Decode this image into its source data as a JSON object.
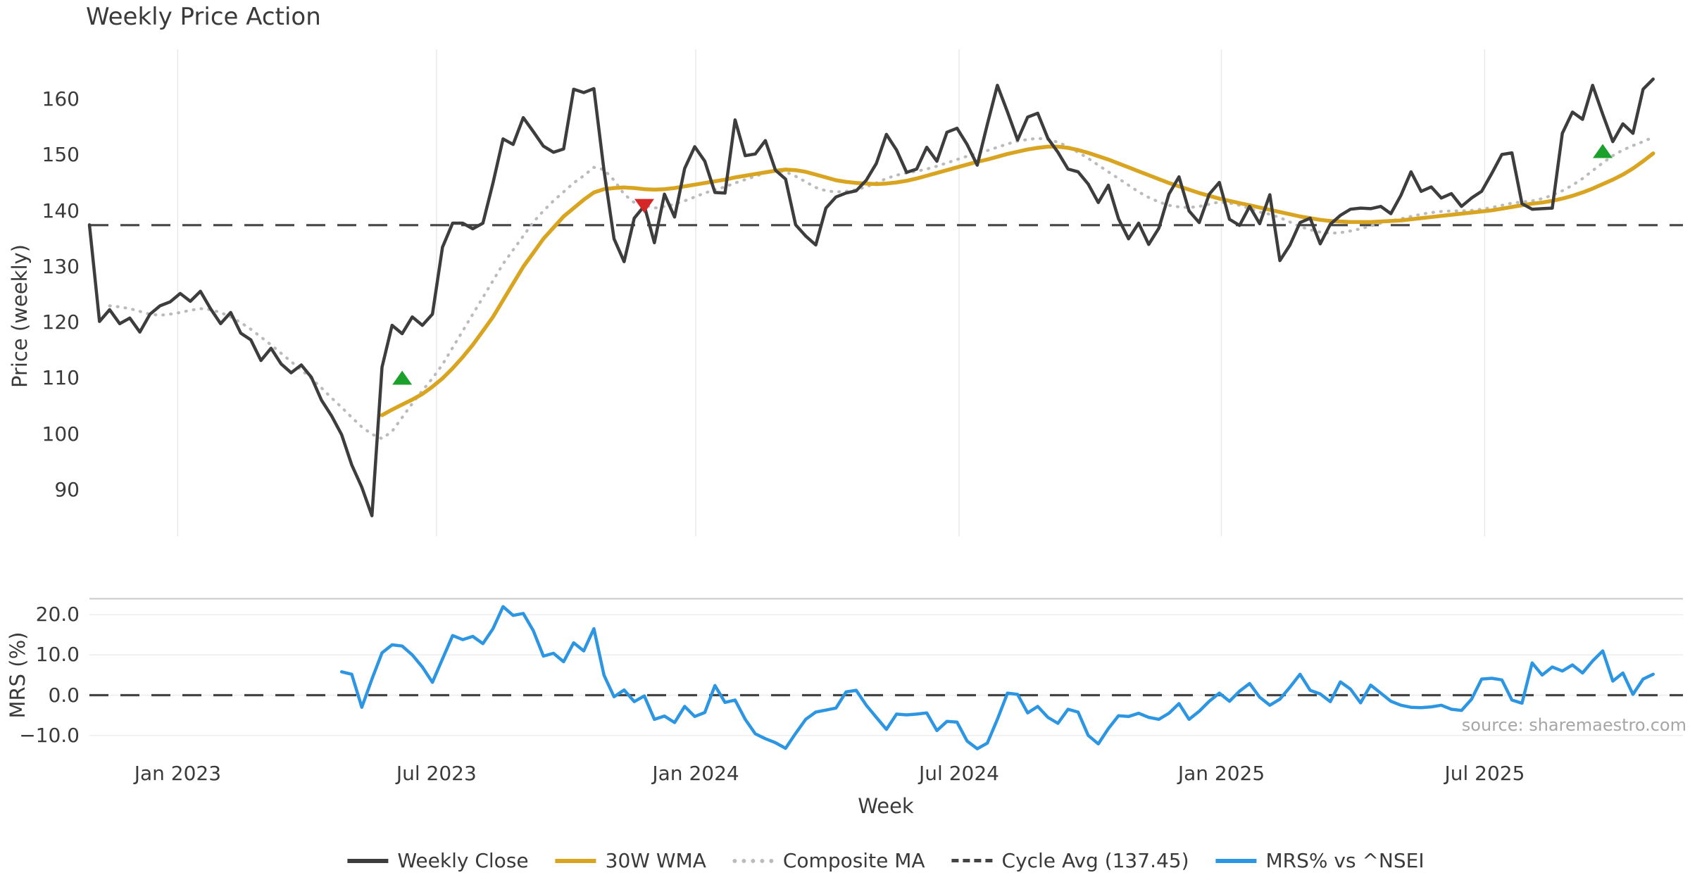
{
  "chart_data": {
    "type": "line",
    "title": "Weekly Price Action",
    "xlabel": "Week",
    "source_text": "source: sharemaestro.com",
    "x_axis": {
      "tick_labels": [
        "Jan 2023",
        "Jul 2023",
        "Jan 2024",
        "Jul 2024",
        "Jan 2025",
        "Jul 2025"
      ],
      "tick_weeks": [
        8.75,
        34.4,
        60.1,
        86.2,
        112.2,
        138.3
      ]
    },
    "colors": {
      "close": "#3d3d3d",
      "wma": "#d9a521",
      "composite": "#bbbbbb",
      "cycle_avg": "#444444",
      "mrs": "#2d96e3",
      "buy_marker": "#1ca02c",
      "sell_marker": "#d62728",
      "gridline": "#e9e9e9",
      "panel_border": "#c9c9c9"
    },
    "panels": [
      {
        "name": "price",
        "ylabel": "Price (weekly)",
        "ylim": [
          82,
          169
        ],
        "yticks": [
          90,
          100,
          110,
          120,
          130,
          140,
          150,
          160
        ],
        "cycle_avg": 137.45,
        "series": [
          {
            "name": "Weekly Close",
            "style": "solid",
            "start_week": 0,
            "values": [
              137.5,
              120.2,
              122.3,
              119.8,
              120.8,
              118.3,
              121.5,
              123.0,
              123.7,
              125.2,
              123.8,
              125.6,
              122.5,
              119.8,
              121.8,
              118.1,
              116.9,
              113.2,
              115.4,
              112.6,
              111.0,
              112.4,
              110.2,
              106.1,
              103.3,
              99.9,
              94.5,
              90.5,
              85.4,
              112.0,
              119.5,
              118.0,
              121.0,
              119.5,
              121.5,
              133.5,
              137.8,
              137.8,
              136.8,
              137.8,
              145.0,
              152.9,
              151.9,
              156.7,
              154.2,
              151.6,
              150.5,
              151.1,
              161.8,
              161.2,
              161.9,
              147.3,
              135.0,
              130.9,
              138.7,
              140.9,
              134.3,
              143.0,
              138.9,
              147.6,
              151.5,
              148.9,
              143.3,
              143.2,
              156.3,
              149.9,
              150.2,
              152.6,
              147.3,
              145.7,
              137.5,
              135.5,
              133.9,
              140.5,
              142.5,
              143.2,
              143.6,
              145.5,
              148.5,
              153.7,
              150.9,
              146.9,
              147.5,
              151.4,
              148.9,
              154.1,
              154.8,
              151.9,
              148.2,
              155.5,
              162.5,
              157.7,
              152.7,
              156.8,
              157.5,
              153.0,
              150.5,
              147.5,
              147.0,
              144.8,
              141.5,
              144.6,
              138.6,
              135.0,
              137.8,
              134.0,
              136.9,
              143.0,
              146.1,
              140.0,
              137.9,
              143.0,
              145.1,
              138.5,
              137.4,
              140.8,
              137.7,
              142.9,
              131.1,
              133.9,
              137.9,
              138.7,
              134.1,
              137.6,
              139.2,
              140.3,
              140.5,
              140.4,
              140.8,
              139.5,
              142.8,
              147.0,
              143.5,
              144.3,
              142.3,
              143.1,
              140.8,
              142.3,
              143.5,
              146.7,
              150.1,
              150.4,
              141.3,
              140.3,
              140.4,
              140.5,
              153.9,
              157.7,
              156.4,
              162.5,
              157.3,
              152.4,
              155.6,
              153.9,
              161.8,
              163.6
            ]
          },
          {
            "name": "30W WMA",
            "style": "solid",
            "start_week": 29,
            "values": [
              103.4,
              104.4,
              105.3,
              106.2,
              107.2,
              108.5,
              110.0,
              111.8,
              113.8,
              116.0,
              118.5,
              121.0,
              124.0,
              127.0,
              130.0,
              132.5,
              135.0,
              137.0,
              139.0,
              140.5,
              142.0,
              143.3,
              143.9,
              144.1,
              144.2,
              144.1,
              143.9,
              143.8,
              143.9,
              144.1,
              144.4,
              144.7,
              145.0,
              145.3,
              145.6,
              146.0,
              146.3,
              146.6,
              146.9,
              147.2,
              147.4,
              147.3,
              147.0,
              146.5,
              146.0,
              145.5,
              145.2,
              145.0,
              144.9,
              144.8,
              144.9,
              145.1,
              145.4,
              145.8,
              146.3,
              146.8,
              147.3,
              147.8,
              148.3,
              148.8,
              149.2,
              149.7,
              150.2,
              150.6,
              151.0,
              151.3,
              151.5,
              151.5,
              151.3,
              150.9,
              150.4,
              149.8,
              149.2,
              148.5,
              147.8,
              147.1,
              146.4,
              145.7,
              145.0,
              144.4,
              143.8,
              143.2,
              142.7,
              142.2,
              141.8,
              141.4,
              141.0,
              140.6,
              140.2,
              139.8,
              139.4,
              139.0,
              138.7,
              138.4,
              138.2,
              138.1,
              138.0,
              138.0,
              138.0,
              138.1,
              138.2,
              138.3,
              138.5,
              138.7,
              138.9,
              139.1,
              139.3,
              139.5,
              139.7,
              139.9,
              140.1,
              140.4,
              140.7,
              141.0,
              141.3,
              141.5,
              141.8,
              142.2,
              142.7,
              143.3,
              144.0,
              144.8,
              145.6,
              146.5,
              147.6,
              148.9,
              150.3
            ]
          },
          {
            "name": "Composite MA",
            "style": "dotted",
            "start_week": 2,
            "values": [
              123.0,
              122.8,
              122.5,
              122.0,
              121.5,
              121.3,
              121.5,
              121.8,
              122.2,
              122.5,
              122.3,
              121.8,
              121.0,
              120.0,
              118.8,
              117.4,
              116.0,
              114.5,
              113.0,
              111.5,
              110.0,
              108.3,
              106.5,
              104.8,
              103.0,
              101.3,
              100.0,
              99.2,
              100.5,
              103.0,
              105.5,
              107.8,
              110.0,
              112.5,
              115.5,
              118.5,
              121.5,
              124.5,
              127.5,
              130.5,
              133.0,
              135.5,
              138.0,
              140.0,
              141.8,
              143.4,
              145.0,
              146.3,
              147.8,
              147.4,
              145.5,
              143.0,
              141.5,
              141.0,
              140.5,
              140.8,
              141.2,
              141.8,
              142.5,
              143.2,
              143.8,
              144.3,
              145.0,
              145.6,
              146.2,
              146.8,
              147.2,
              147.0,
              146.2,
              145.2,
              144.2,
              143.6,
              143.4,
              143.5,
              143.8,
              144.3,
              145.0,
              145.8,
              146.4,
              146.8,
              147.1,
              147.5,
              148.0,
              148.6,
              149.2,
              149.8,
              150.3,
              150.8,
              151.4,
              152.0,
              152.5,
              152.8,
              153.0,
              152.8,
              152.3,
              151.5,
              150.5,
              149.4,
              148.2,
              147.0,
              145.8,
              144.6,
              143.4,
              142.4,
              141.6,
              141.0,
              140.7,
              140.6,
              140.8,
              141.2,
              141.6,
              141.4,
              141.0,
              140.4,
              139.8,
              139.4,
              138.8,
              138.0,
              137.2,
              136.6,
              136.2,
              136.0,
              136.1,
              136.4,
              136.8,
              137.3,
              137.8,
              138.2,
              138.6,
              139.0,
              139.4,
              139.7,
              139.9,
              140.0,
              140.0,
              140.1,
              140.3,
              140.6,
              141.0,
              141.4,
              141.6,
              141.8,
              142.2,
              142.8,
              143.6,
              144.6,
              145.8,
              147.2,
              148.6,
              149.9,
              150.9,
              151.7,
              152.4,
              153.2
            ]
          }
        ],
        "markers": [
          {
            "week": 31,
            "value": 110.0,
            "shape": "triangle-up"
          },
          {
            "week": 55,
            "value": 141.0,
            "shape": "triangle-down"
          },
          {
            "week": 150,
            "value": 150.6,
            "shape": "triangle-up"
          }
        ]
      },
      {
        "name": "mrs",
        "ylabel": "MRS (%)",
        "ylim": [
          -15.5,
          24.0
        ],
        "yticks": [
          20,
          10,
          0,
          -10
        ],
        "ytick_labels": [
          "20.0",
          "10.0",
          "0.0",
          "−10.0"
        ],
        "zero_line": 0.0,
        "series": [
          {
            "name": "MRS% vs ^NSEI",
            "style": "solid",
            "start_week": 25,
            "values": [
              5.8,
              5.2,
              -3.0,
              4.0,
              10.5,
              12.5,
              12.2,
              10.0,
              7.0,
              3.2,
              9.0,
              14.8,
              13.8,
              14.6,
              12.8,
              16.5,
              22.0,
              19.8,
              20.3,
              16.0,
              9.7,
              10.4,
              8.3,
              13.0,
              11.0,
              16.5,
              5.0,
              -0.4,
              1.3,
              -1.6,
              -0.2,
              -6.0,
              -5.2,
              -6.8,
              -2.8,
              -5.3,
              -4.3,
              2.4,
              -1.8,
              -1.2,
              -6.0,
              -9.6,
              -10.8,
              -11.8,
              -13.2,
              -9.5,
              -6.0,
              -4.2,
              -3.7,
              -3.2,
              0.8,
              1.2,
              -2.5,
              -5.5,
              -8.5,
              -4.7,
              -4.9,
              -4.7,
              -4.4,
              -8.8,
              -6.5,
              -6.7,
              -11.4,
              -13.3,
              -11.9,
              -6.0,
              0.5,
              0.2,
              -4.4,
              -2.8,
              -5.5,
              -7.0,
              -3.5,
              -4.2,
              -10.0,
              -12.1,
              -8.3,
              -5.1,
              -5.3,
              -4.5,
              -5.5,
              -6.0,
              -4.5,
              -2.1,
              -6.0,
              -4.0,
              -1.5,
              0.5,
              -1.5,
              1.0,
              2.9,
              -0.5,
              -2.5,
              -1.0,
              2.0,
              5.2,
              1.2,
              0.3,
              -1.6,
              3.3,
              1.5,
              -1.9,
              2.5,
              0.5,
              -1.5,
              -2.5,
              -3.0,
              -3.1,
              -2.9,
              -2.5,
              -3.5,
              -3.8,
              -1.0,
              4.0,
              4.2,
              3.8,
              -1.2,
              -2.0,
              8.0,
              5.0,
              7.0,
              6.0,
              7.5,
              5.5,
              8.5,
              11.0,
              3.5,
              5.5,
              0.2,
              4.0,
              5.2
            ]
          }
        ]
      }
    ],
    "legend": [
      {
        "label": "Weekly Close",
        "color": "#3d3d3d",
        "style": "solid"
      },
      {
        "label": "30W WMA",
        "color": "#d9a521",
        "style": "solid"
      },
      {
        "label": "Composite MA",
        "color": "#bbbbbb",
        "style": "dotted"
      },
      {
        "label": "Cycle Avg (137.45)",
        "color": "#444444",
        "style": "dashed"
      },
      {
        "label": "MRS% vs ^NSEI",
        "color": "#2d96e3",
        "style": "solid"
      }
    ]
  }
}
